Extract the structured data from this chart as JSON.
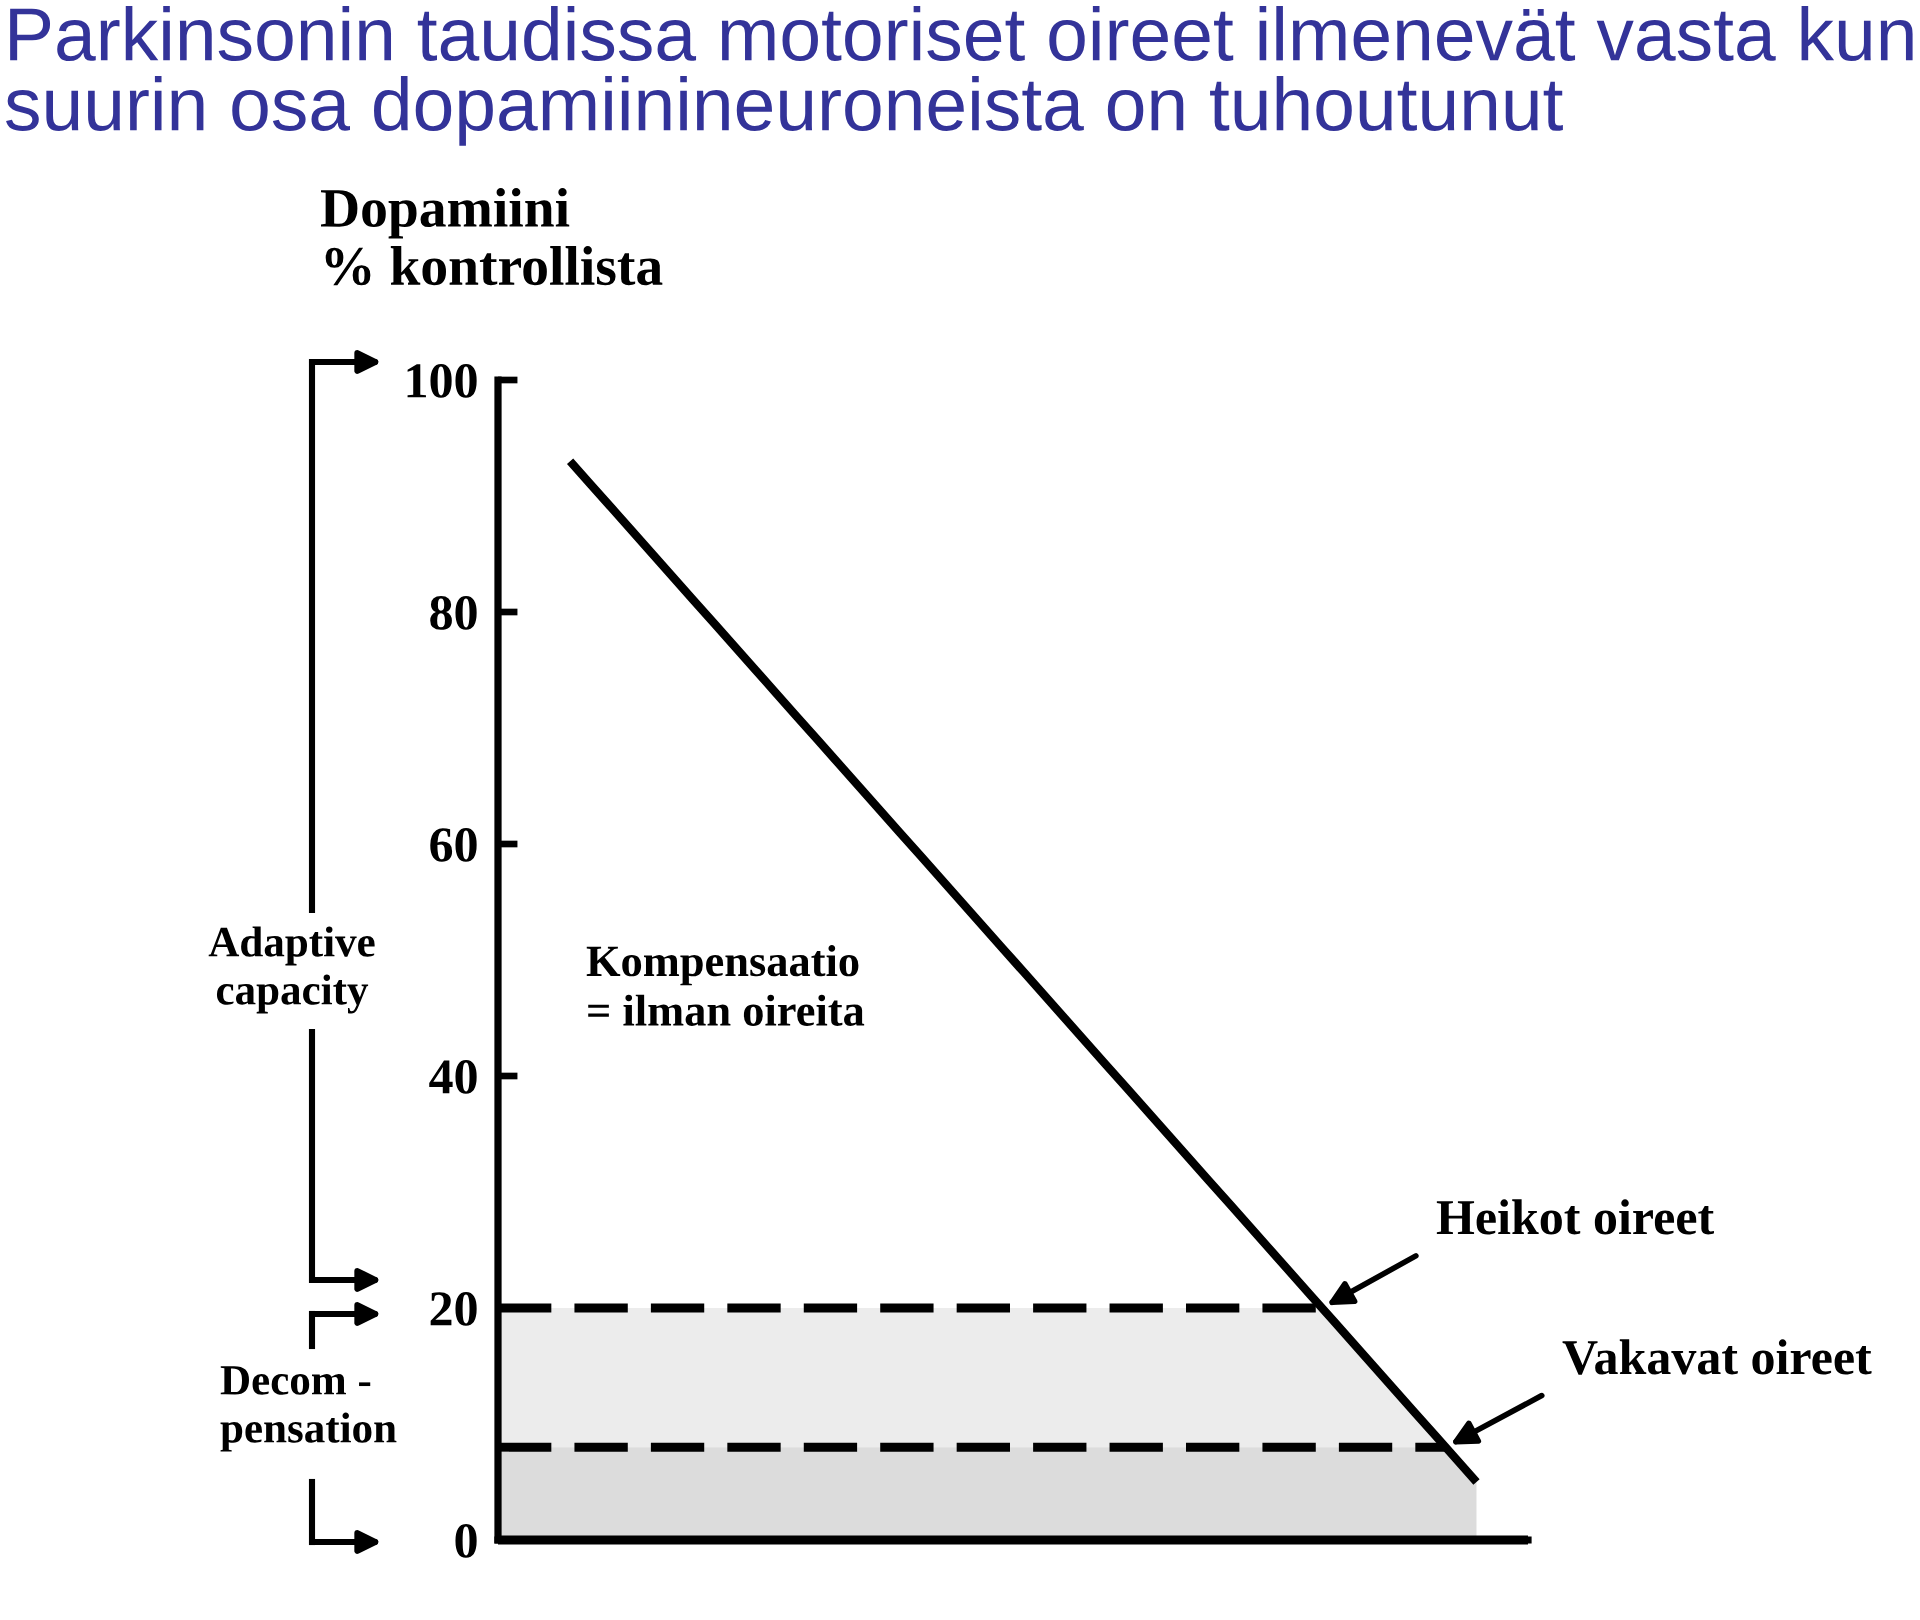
{
  "chart_data": {
    "type": "line",
    "title": "Parkinsonin taudissa motoriset oireet ilmenevät vasta kun\nsuurin osa dopamiinineuroneista on tuhoutunut",
    "ylabel": "Dopamiini\n% kontrollista",
    "categories": [
      null,
      null,
      null,
      null,
      null,
      null,
      null,
      null,
      null,
      null,
      null,
      null,
      null,
      null,
      null,
      null,
      null,
      null,
      null,
      null,
      null,
      null,
      null,
      null,
      null,
      null,
      null,
      null,
      null,
      null,
      null,
      null,
      null,
      null,
      null,
      null,
      null,
      null,
      null,
      null,
      null,
      null,
      null,
      null,
      null,
      null,
      null,
      null,
      null,
      null
    ],
    "series": [
      {
        "color": "#000000",
        "values": [
          null,
          null,
          null,
          93,
          91,
          89,
          87,
          85,
          83,
          81,
          79,
          77,
          75,
          73,
          71,
          69,
          67,
          65,
          63,
          61,
          59,
          57,
          55,
          53,
          51,
          49,
          47,
          45,
          43,
          41,
          39,
          37,
          35,
          33,
          31,
          29,
          27,
          25,
          23,
          21,
          19,
          17,
          15,
          13,
          11,
          9,
          7,
          5,
          null,
          null
        ]
      }
    ],
    "bands": [
      {
        "axis": "y",
        "from": 8,
        "to": 20,
        "color": "#ececec"
      },
      {
        "axis": "y",
        "from": 0,
        "to": 8,
        "color": "#dcdcdc"
      }
    ],
    "ref_lines": [
      {
        "axis": "y",
        "value": 20,
        "color": "#000000",
        "line_style": "dashed"
      },
      {
        "axis": "y",
        "value": 8,
        "color": "#000000",
        "line_style": "dashed"
      },
      {
        "axis": "y",
        "value": 0,
        "color": "#000000",
        "line_style": "solid"
      }
    ],
    "ylim": [
      0,
      100
    ],
    "yticks": [
      0,
      20,
      40,
      60,
      80,
      100
    ],
    "tick_labels": "y",
    "annotations": [
      "Adaptive\ncapacity",
      "Kompensaatio\n= ilman oireita",
      "Heikot oireet",
      "Vakavat oireet",
      "Decom -\npensation"
    ]
  }
}
